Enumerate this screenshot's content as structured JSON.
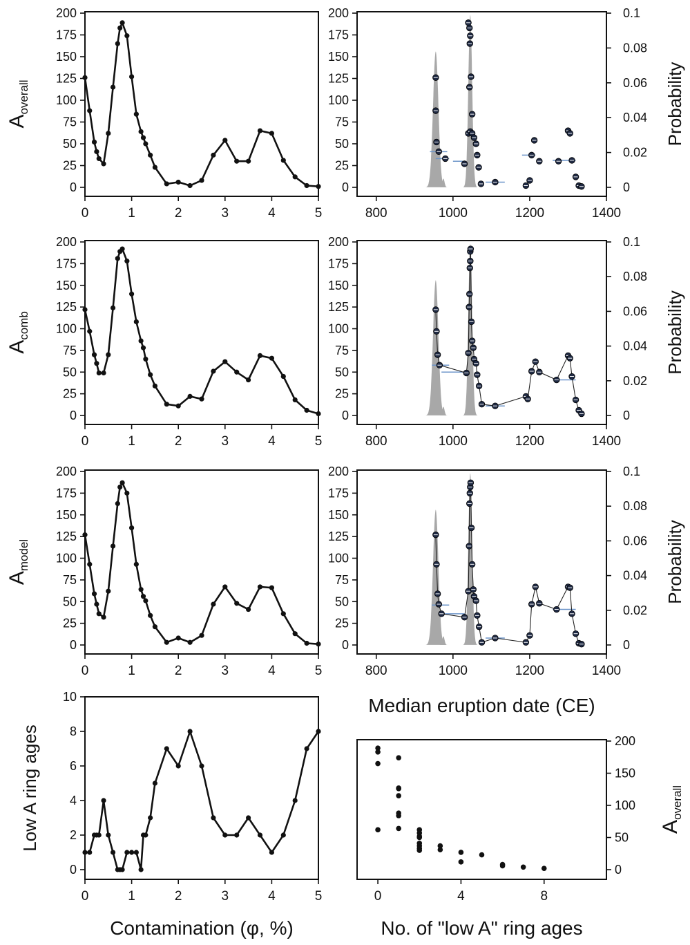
{
  "chart_data": [
    {
      "id": "left-overall",
      "type": "line",
      "xlim": [
        0,
        5
      ],
      "ylim": [
        0,
        200
      ],
      "xticks": [
        0,
        1,
        2,
        3,
        4,
        5
      ],
      "yticks": [
        0,
        25,
        50,
        75,
        100,
        125,
        150,
        175,
        200
      ],
      "ylabel_main": "A",
      "ylabel_sub": "overall",
      "x": [
        0,
        0.1,
        0.2,
        0.25,
        0.3,
        0.4,
        0.5,
        0.6,
        0.7,
        0.75,
        0.8,
        0.9,
        1.0,
        1.1,
        1.2,
        1.25,
        1.3,
        1.4,
        1.5,
        1.75,
        2.0,
        2.25,
        2.5,
        2.75,
        3.0,
        3.25,
        3.5,
        3.75,
        4.0,
        4.25,
        4.5,
        4.75,
        5.0
      ],
      "y": [
        126,
        88,
        52,
        41,
        33,
        27,
        62,
        115,
        165,
        183,
        189,
        174,
        127,
        84,
        64,
        57,
        50,
        37,
        23,
        4,
        6,
        2,
        8,
        37,
        54,
        30,
        30,
        65,
        62,
        31,
        12,
        2,
        1
      ]
    },
    {
      "id": "left-comb",
      "type": "line",
      "xlim": [
        0,
        5
      ],
      "ylim": [
        0,
        200
      ],
      "xticks": [
        0,
        1,
        2,
        3,
        4,
        5
      ],
      "yticks": [
        0,
        25,
        50,
        75,
        100,
        125,
        150,
        175,
        200
      ],
      "ylabel_main": "A",
      "ylabel_sub": "comb",
      "x": [
        0,
        0.1,
        0.2,
        0.25,
        0.3,
        0.4,
        0.5,
        0.6,
        0.7,
        0.75,
        0.8,
        0.9,
        1.0,
        1.1,
        1.2,
        1.25,
        1.3,
        1.4,
        1.5,
        1.75,
        2.0,
        2.25,
        2.5,
        2.75,
        3.0,
        3.25,
        3.5,
        3.75,
        4.0,
        4.25,
        4.5,
        4.75,
        5.0
      ],
      "y": [
        122,
        97,
        70,
        60,
        49,
        49,
        70,
        124,
        181,
        189,
        192,
        178,
        140,
        108,
        86,
        78,
        65,
        47,
        34,
        13,
        11,
        22,
        19,
        51,
        62,
        50,
        41,
        69,
        66,
        45,
        18,
        6,
        2
      ]
    },
    {
      "id": "left-model",
      "type": "line",
      "xlim": [
        0,
        5
      ],
      "ylim": [
        0,
        200
      ],
      "xticks": [
        0,
        1,
        2,
        3,
        4,
        5
      ],
      "yticks": [
        0,
        25,
        50,
        75,
        100,
        125,
        150,
        175,
        200
      ],
      "ylabel_main": "A",
      "ylabel_sub": "model",
      "x": [
        0,
        0.1,
        0.2,
        0.25,
        0.3,
        0.4,
        0.5,
        0.6,
        0.7,
        0.75,
        0.8,
        0.9,
        1.0,
        1.1,
        1.2,
        1.25,
        1.3,
        1.4,
        1.5,
        1.75,
        2.0,
        2.25,
        2.5,
        2.75,
        3.0,
        3.25,
        3.5,
        3.75,
        4.0,
        4.25,
        4.5,
        4.75,
        5.0
      ],
      "y": [
        127,
        93,
        59,
        47,
        36,
        32,
        62,
        114,
        163,
        182,
        187,
        175,
        135,
        93,
        64,
        56,
        51,
        34,
        21,
        3,
        8,
        3,
        11,
        47,
        67,
        48,
        41,
        67,
        66,
        36,
        13,
        2,
        1
      ]
    },
    {
      "id": "left-low-a",
      "type": "line",
      "xlim": [
        0,
        5
      ],
      "ylim": [
        0,
        10
      ],
      "xticks": [
        0,
        1,
        2,
        3,
        4,
        5
      ],
      "yticks": [
        0,
        2,
        4,
        6,
        8,
        10
      ],
      "ylabel": "Low A ring ages",
      "xlabel": "Contamination (φ, %)",
      "x": [
        0,
        0.1,
        0.2,
        0.25,
        0.3,
        0.4,
        0.5,
        0.6,
        0.7,
        0.75,
        0.8,
        0.9,
        1.0,
        1.1,
        1.2,
        1.25,
        1.3,
        1.4,
        1.5,
        1.75,
        2.0,
        2.25,
        2.5,
        2.75,
        3.0,
        3.25,
        3.5,
        3.75,
        4.0,
        4.25,
        4.5,
        4.75,
        5.0
      ],
      "y": [
        1,
        1,
        2,
        2,
        2,
        4,
        2,
        1,
        0,
        0,
        0,
        1,
        1,
        1,
        0,
        2,
        2,
        3,
        5,
        7,
        6,
        8,
        6,
        3,
        2,
        2,
        3,
        2,
        1,
        2,
        4,
        7,
        8
      ]
    },
    {
      "id": "right-overall",
      "type": "scatter",
      "xlim": [
        750,
        1400
      ],
      "ylim": [
        0,
        200
      ],
      "y2lim": [
        0,
        0.1
      ],
      "xticks": [
        800,
        1000,
        1200,
        1400
      ],
      "yticks": [
        0,
        25,
        50,
        75,
        100,
        125,
        150,
        175,
        200
      ],
      "y2ticks": [
        0,
        0.02,
        0.04,
        0.06,
        0.08,
        0.1
      ],
      "y2label": "Probability",
      "connect_points": false,
      "prob_peaks": [
        {
          "center": 955,
          "width": 7,
          "height": 0.078
        },
        {
          "center": 975,
          "width": 3,
          "height": 0.005
        },
        {
          "center": 1045,
          "width": 5,
          "height": 0.099
        }
      ],
      "points": [
        [
          955,
          126
        ],
        [
          955,
          88
        ],
        [
          957,
          52
        ],
        [
          963,
          41
        ],
        [
          980,
          33
        ],
        [
          1040,
          189
        ],
        [
          1043,
          183
        ],
        [
          1045,
          174
        ],
        [
          1044,
          165
        ],
        [
          1047,
          127
        ],
        [
          1043,
          115
        ],
        [
          1050,
          84
        ],
        [
          1040,
          62
        ],
        [
          1045,
          64
        ],
        [
          1050,
          62
        ],
        [
          1055,
          57
        ],
        [
          1060,
          50
        ],
        [
          1063,
          37
        ],
        [
          1030,
          27
        ],
        [
          1067,
          23
        ],
        [
          1073,
          4
        ],
        [
          1110,
          6
        ],
        [
          1190,
          2
        ],
        [
          1200,
          8
        ],
        [
          1205,
          37
        ],
        [
          1212,
          54
        ],
        [
          1225,
          30
        ],
        [
          1275,
          30
        ],
        [
          1300,
          65
        ],
        [
          1305,
          62
        ],
        [
          1310,
          31
        ],
        [
          1320,
          12
        ],
        [
          1328,
          2
        ],
        [
          1335,
          1
        ]
      ],
      "blue_bars": [
        [
          940,
          985,
          41
        ],
        [
          955,
          990,
          33
        ],
        [
          1000,
          1030,
          30
        ],
        [
          1085,
          1135,
          6
        ],
        [
          1180,
          1215,
          37
        ],
        [
          1260,
          1320,
          31
        ]
      ]
    },
    {
      "id": "right-comb",
      "type": "scatter",
      "xlim": [
        750,
        1400
      ],
      "ylim": [
        0,
        200
      ],
      "y2lim": [
        0,
        0.1
      ],
      "xticks": [
        800,
        1000,
        1200,
        1400
      ],
      "yticks": [
        0,
        25,
        50,
        75,
        100,
        125,
        150,
        175,
        200
      ],
      "y2ticks": [
        0,
        0.02,
        0.04,
        0.06,
        0.08,
        0.1
      ],
      "y2label": "Probability",
      "connect_points": true,
      "prob_peaks": [
        {
          "center": 955,
          "width": 7,
          "height": 0.078
        },
        {
          "center": 975,
          "width": 3,
          "height": 0.005
        },
        {
          "center": 1045,
          "width": 5,
          "height": 0.099
        }
      ],
      "points": [
        [
          955,
          122
        ],
        [
          957,
          97
        ],
        [
          960,
          70
        ],
        [
          965,
          58
        ],
        [
          1035,
          49
        ],
        [
          1040,
          72
        ],
        [
          1042,
          125
        ],
        [
          1043,
          140
        ],
        [
          1044,
          170
        ],
        [
          1045,
          178
        ],
        [
          1045,
          189
        ],
        [
          1046,
          192
        ],
        [
          1048,
          108
        ],
        [
          1050,
          86
        ],
        [
          1053,
          78
        ],
        [
          1055,
          65
        ],
        [
          1060,
          60
        ],
        [
          1063,
          47
        ],
        [
          1068,
          34
        ],
        [
          1075,
          13
        ],
        [
          1110,
          11
        ],
        [
          1190,
          22
        ],
        [
          1195,
          19
        ],
        [
          1205,
          51
        ],
        [
          1215,
          62
        ],
        [
          1225,
          50
        ],
        [
          1270,
          41
        ],
        [
          1300,
          69
        ],
        [
          1305,
          66
        ],
        [
          1310,
          45
        ],
        [
          1320,
          18
        ],
        [
          1328,
          6
        ],
        [
          1335,
          2
        ]
      ],
      "blue_bars": [
        [
          945,
          990,
          58
        ],
        [
          970,
          1030,
          50
        ],
        [
          1085,
          1135,
          11
        ],
        [
          1260,
          1320,
          41
        ]
      ]
    },
    {
      "id": "right-model",
      "type": "scatter",
      "xlim": [
        750,
        1400
      ],
      "ylim": [
        0,
        200
      ],
      "y2lim": [
        0,
        0.1
      ],
      "xticks": [
        800,
        1000,
        1200,
        1400
      ],
      "yticks": [
        0,
        25,
        50,
        75,
        100,
        125,
        150,
        175,
        200
      ],
      "y2ticks": [
        0,
        0.02,
        0.04,
        0.06,
        0.08,
        0.1
      ],
      "y2label": "Probability",
      "xlabel": "Median eruption date (CE)",
      "connect_points": true,
      "prob_peaks": [
        {
          "center": 955,
          "width": 7,
          "height": 0.078
        },
        {
          "center": 975,
          "width": 3,
          "height": 0.005
        },
        {
          "center": 1045,
          "width": 5,
          "height": 0.099
        }
      ],
      "points": [
        [
          955,
          127
        ],
        [
          957,
          93
        ],
        [
          960,
          59
        ],
        [
          963,
          47
        ],
        [
          970,
          36
        ],
        [
          1030,
          32
        ],
        [
          1040,
          62
        ],
        [
          1042,
          114
        ],
        [
          1043,
          163
        ],
        [
          1044,
          175
        ],
        [
          1045,
          182
        ],
        [
          1046,
          187
        ],
        [
          1048,
          135
        ],
        [
          1050,
          93
        ],
        [
          1053,
          64
        ],
        [
          1055,
          56
        ],
        [
          1060,
          51
        ],
        [
          1063,
          34
        ],
        [
          1068,
          21
        ],
        [
          1075,
          3
        ],
        [
          1110,
          8
        ],
        [
          1190,
          3
        ],
        [
          1200,
          11
        ],
        [
          1205,
          47
        ],
        [
          1215,
          67
        ],
        [
          1225,
          48
        ],
        [
          1270,
          41
        ],
        [
          1300,
          67
        ],
        [
          1305,
          66
        ],
        [
          1310,
          36
        ],
        [
          1320,
          13
        ],
        [
          1328,
          2
        ],
        [
          1335,
          1
        ]
      ],
      "blue_bars": [
        [
          945,
          990,
          46
        ],
        [
          965,
          1030,
          36
        ],
        [
          1085,
          1135,
          8
        ],
        [
          1260,
          1320,
          41
        ]
      ]
    },
    {
      "id": "right-ring-ages",
      "type": "scatter",
      "xlim": [
        -1,
        11
      ],
      "ylim": [
        0,
        200
      ],
      "xticks": [
        0,
        4,
        8
      ],
      "yticks": [
        0,
        50,
        100,
        150,
        200
      ],
      "ylabel_main": "A",
      "ylabel_sub": "overall",
      "xlabel": "No. of \"low A\" ring ages",
      "points": [
        [
          0,
          189
        ],
        [
          0,
          183
        ],
        [
          0,
          165
        ],
        [
          0,
          62
        ],
        [
          1,
          174
        ],
        [
          1,
          127
        ],
        [
          1,
          126
        ],
        [
          1,
          115
        ],
        [
          1,
          88
        ],
        [
          1,
          84
        ],
        [
          1,
          64
        ],
        [
          2,
          62
        ],
        [
          2,
          57
        ],
        [
          2,
          52
        ],
        [
          2,
          50
        ],
        [
          2,
          41
        ],
        [
          2,
          37
        ],
        [
          2,
          33
        ],
        [
          2,
          30
        ],
        [
          3,
          37
        ],
        [
          3,
          31
        ],
        [
          4,
          27
        ],
        [
          4,
          12
        ],
        [
          5,
          23
        ],
        [
          6,
          8
        ],
        [
          6,
          6
        ],
        [
          7,
          4
        ],
        [
          8,
          2
        ]
      ]
    }
  ]
}
